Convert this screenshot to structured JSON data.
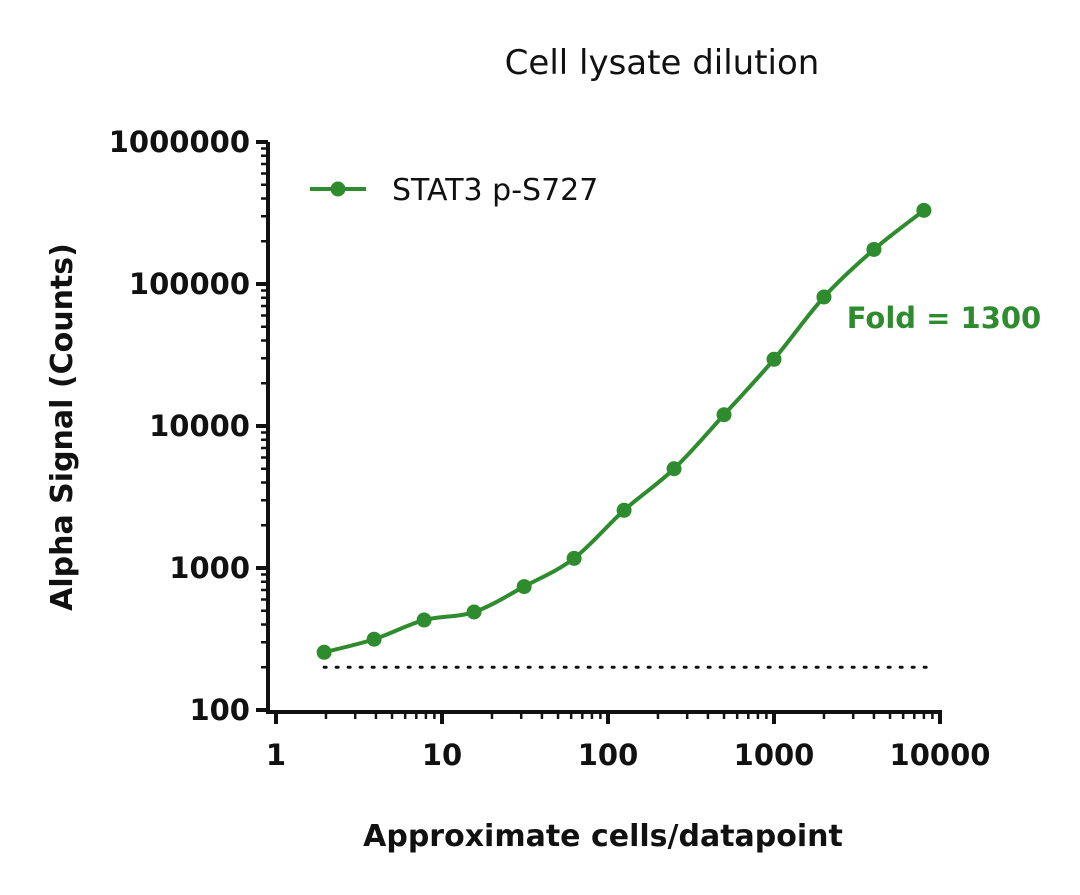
{
  "chart_data": {
    "type": "scatter",
    "title": "Cell lysate dilution",
    "xlabel": "Approximate cells/datapoint",
    "ylabel": "Alpha Signal (Counts)",
    "x_scale": "log",
    "y_scale": "log",
    "xlim": [
      1,
      10000
    ],
    "ylim": [
      100,
      1000000
    ],
    "x_ticks": [
      "1",
      "10",
      "100",
      "1000",
      "10000"
    ],
    "y_ticks": [
      "100",
      "1000",
      "10000",
      "100000",
      "1000000"
    ],
    "legend_position": "top-left",
    "grid": false,
    "series": [
      {
        "name": "STAT3 p-S727",
        "color": "#2e8b2e",
        "marker": "circle",
        "fit": "sigmoidal curve",
        "x": [
          1.95,
          3.9,
          7.8,
          15.6,
          31.25,
          62.5,
          125,
          250,
          500,
          1000,
          2000,
          4000,
          8000
        ],
        "y": [
          255,
          315,
          430,
          490,
          740,
          1170,
          2550,
          5000,
          12000,
          29500,
          81000,
          175000,
          330000
        ]
      }
    ],
    "reference_line": {
      "y": 200,
      "style": "dotted",
      "color": "#111111"
    },
    "annotations": [
      {
        "text": "Fold = 1300",
        "color": "#2e8b2e"
      }
    ]
  }
}
